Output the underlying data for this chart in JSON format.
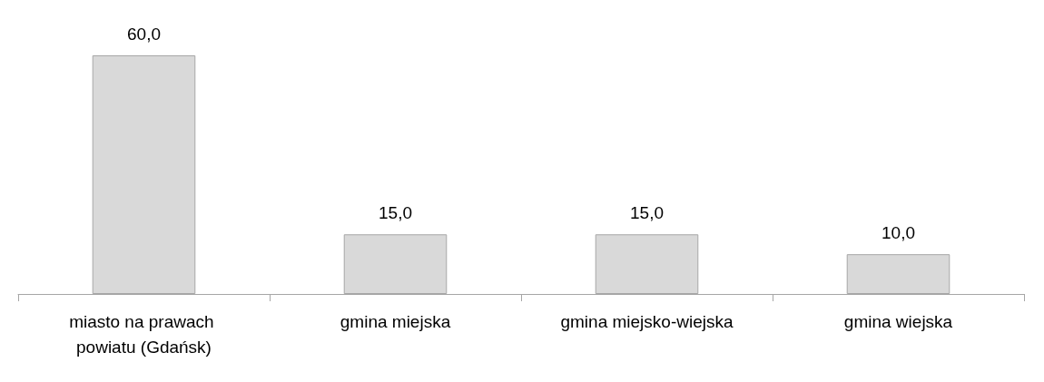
{
  "chart_data": {
    "type": "bar",
    "categories": [
      "miasto na prawach powiatu (Gdańsk)",
      "gmina miejska",
      "gmina miejsko-wiejska",
      "gmina wiejska"
    ],
    "values": [
      60,
      15,
      15,
      10
    ],
    "value_labels": [
      "60,0",
      "15,0",
      "15,0",
      "10,0"
    ],
    "color": "#d9d9d9"
  }
}
